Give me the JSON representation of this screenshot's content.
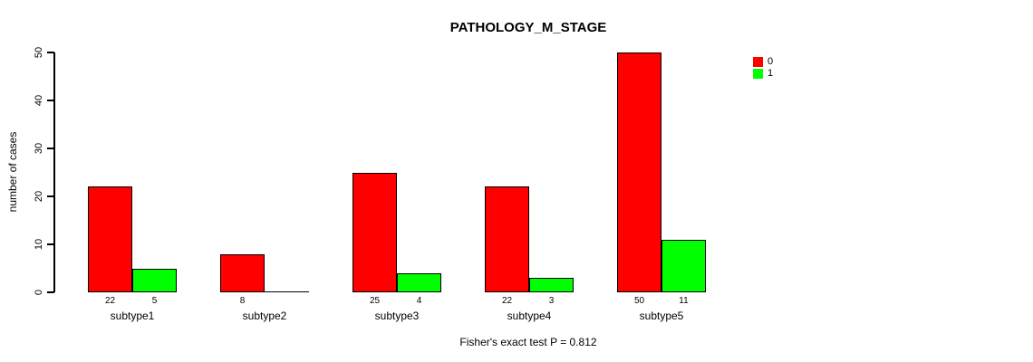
{
  "chart_data": {
    "type": "bar",
    "grouped": true,
    "title": "PATHOLOGY_M_STAGE",
    "xlabel": "",
    "ylabel": "number of cases",
    "categories": [
      "subtype1",
      "subtype2",
      "subtype3",
      "subtype4",
      "subtype5"
    ],
    "series": [
      {
        "name": "0",
        "color": "#FF0000",
        "values": [
          22,
          8,
          25,
          22,
          50
        ]
      },
      {
        "name": "1",
        "color": "#00FF00",
        "values": [
          5,
          0,
          4,
          3,
          11
        ]
      }
    ],
    "bar_count_labels": {
      "series_0": [
        "22",
        "8",
        "25",
        "22",
        "50"
      ],
      "series_1": [
        "5",
        "",
        "4",
        "3",
        "11"
      ]
    },
    "ylim": [
      0,
      50
    ],
    "yticks": [
      0,
      10,
      20,
      30,
      40,
      50
    ],
    "grid": false,
    "legend_position": "top-right",
    "legend_entries": [
      {
        "label": "0",
        "color": "#FF0000"
      },
      {
        "label": "1",
        "color": "#00FF00"
      }
    ],
    "annotation": "Fisher's exact test P = 0.812"
  }
}
